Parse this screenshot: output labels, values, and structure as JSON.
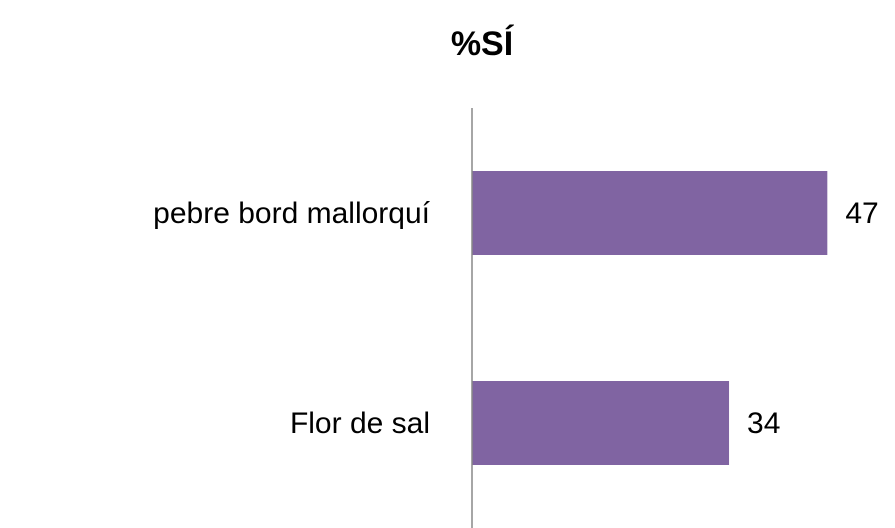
{
  "chart_data": {
    "type": "bar",
    "orientation": "horizontal",
    "title": "%SÍ",
    "categories": [
      "pebre bord mallorquí",
      "Flor de sal"
    ],
    "values": [
      47,
      34
    ],
    "color": "#8064a2",
    "xlim": [
      0,
      50
    ],
    "data_labels": true
  }
}
